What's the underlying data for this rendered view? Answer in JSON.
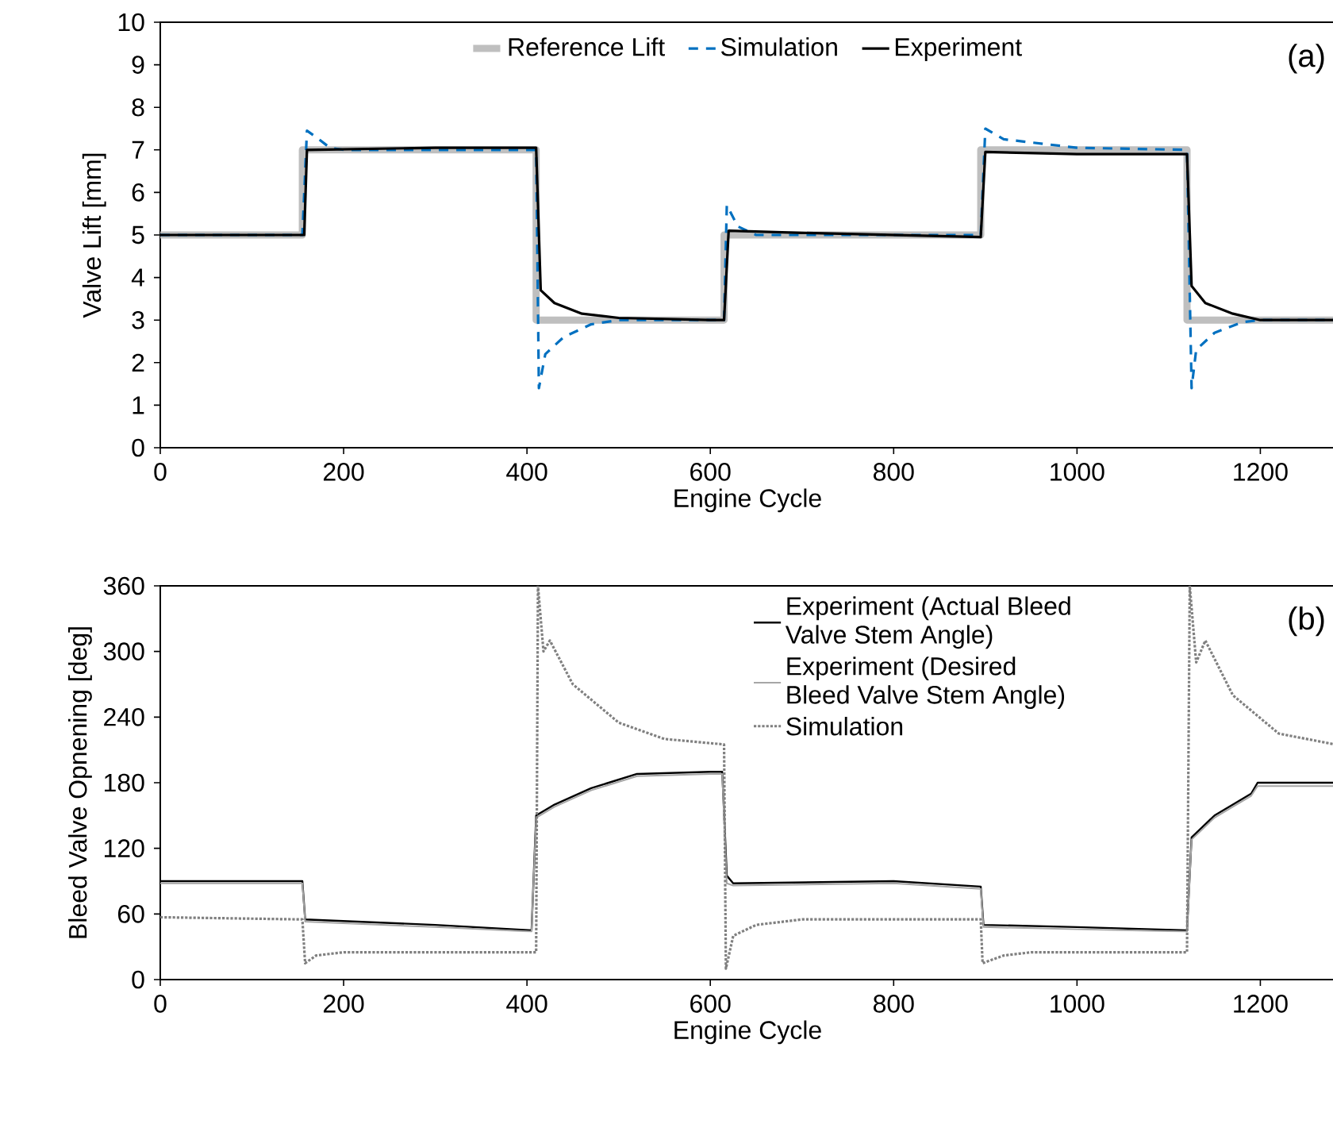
{
  "chart_data": [
    {
      "type": "line",
      "xlabel": "Engine Cycle",
      "ylabel": "Valve Lift [mm]",
      "annotations": [
        "(a)"
      ],
      "xlim": [
        0,
        1281
      ],
      "xticks": [
        0,
        200,
        400,
        600,
        800,
        1000,
        1200
      ],
      "ylim": [
        0,
        10
      ],
      "yticks": [
        0,
        1,
        2,
        3,
        4,
        5,
        6,
        7,
        8,
        9,
        10
      ],
      "grid": false,
      "legend": "top",
      "series": [
        {
          "name": "Reference Lift",
          "color": "#bfbfbf",
          "line_style": "solid",
          "x": [
            0,
            155,
            155,
            410,
            410,
            615,
            615,
            895,
            895,
            1120,
            1120,
            1281
          ],
          "values": [
            5,
            5,
            7,
            7,
            3,
            3,
            5,
            5,
            7,
            7,
            3,
            3
          ]
        },
        {
          "name": "Simulation",
          "color": "#0070c0",
          "line_style": "dashed",
          "x": [
            0,
            155,
            160,
            170,
            185,
            200,
            410,
            413,
            420,
            440,
            470,
            500,
            615,
            618,
            630,
            650,
            895,
            900,
            920,
            1000,
            1120,
            1125,
            1130,
            1150,
            1180,
            1200,
            1281
          ],
          "values": [
            5,
            5,
            7.45,
            7.3,
            7.05,
            7,
            7,
            1.4,
            2.2,
            2.6,
            2.9,
            3,
            3,
            5.7,
            5.2,
            5,
            5,
            7.5,
            7.25,
            7.05,
            7,
            1.4,
            2.3,
            2.7,
            2.95,
            3,
            3
          ]
        },
        {
          "name": "Experiment",
          "color": "#000000",
          "line_style": "solid",
          "x": [
            0,
            157,
            160,
            300,
            350,
            410,
            415,
            430,
            460,
            500,
            600,
            615,
            620,
            700,
            895,
            900,
            1000,
            1120,
            1125,
            1140,
            1170,
            1200,
            1281
          ],
          "values": [
            5,
            5,
            7,
            7.05,
            7.05,
            7.05,
            3.7,
            3.4,
            3.15,
            3.05,
            3,
            3,
            5.1,
            5.05,
            4.95,
            6.95,
            6.9,
            6.9,
            3.8,
            3.4,
            3.15,
            3,
            3
          ]
        }
      ]
    },
    {
      "type": "line",
      "xlabel": "Engine Cycle",
      "ylabel": "Bleed Valve Opnening [deg]",
      "annotations": [
        "(b)"
      ],
      "xlim": [
        0,
        1281
      ],
      "xticks": [
        0,
        200,
        400,
        600,
        800,
        1000,
        1200
      ],
      "ylim": [
        0,
        360
      ],
      "yticks": [
        0,
        60,
        120,
        180,
        240,
        300,
        360
      ],
      "grid": false,
      "legend": "top right",
      "series": [
        {
          "name": "Experiment (Actual Bleed Valve Stem Angle)",
          "color": "#000000",
          "line_style": "solid",
          "x": [
            0,
            155,
            158,
            300,
            405,
            410,
            430,
            470,
            520,
            600,
            613,
            618,
            625,
            800,
            895,
            898,
            1000,
            1120,
            1125,
            1150,
            1190,
            1197,
            1281
          ],
          "values": [
            90,
            90,
            55,
            50,
            45,
            150,
            160,
            175,
            188,
            190,
            190,
            95,
            88,
            90,
            85,
            50,
            48,
            45,
            130,
            150,
            170,
            180,
            180
          ]
        },
        {
          "name": "Experiment (Desired Bleed Valve Stem Angle)",
          "color": "#a6a6a6",
          "line_style": "solid",
          "x": [
            0,
            155,
            158,
            300,
            405,
            410,
            430,
            470,
            520,
            600,
            613,
            618,
            625,
            800,
            895,
            898,
            1000,
            1120,
            1125,
            1150,
            1190,
            1197,
            1281
          ],
          "values": [
            88,
            88,
            53,
            48,
            44,
            148,
            158,
            173,
            186,
            188,
            188,
            88,
            86,
            88,
            83,
            48,
            46,
            44,
            128,
            148,
            168,
            177,
            177
          ]
        },
        {
          "name": "Simulation",
          "color": "#808080",
          "line_style": "dotted",
          "x": [
            0,
            155,
            158,
            170,
            200,
            410,
            412,
            418,
            425,
            450,
            500,
            550,
            615,
            617,
            625,
            650,
            700,
            895,
            897,
            920,
            950,
            1120,
            1123,
            1130,
            1140,
            1170,
            1220,
            1281
          ],
          "values": [
            57,
            55,
            15,
            22,
            25,
            25,
            360,
            300,
            310,
            270,
            235,
            220,
            215,
            10,
            40,
            50,
            55,
            55,
            15,
            22,
            25,
            25,
            360,
            290,
            310,
            260,
            225,
            215
          ]
        }
      ]
    }
  ]
}
